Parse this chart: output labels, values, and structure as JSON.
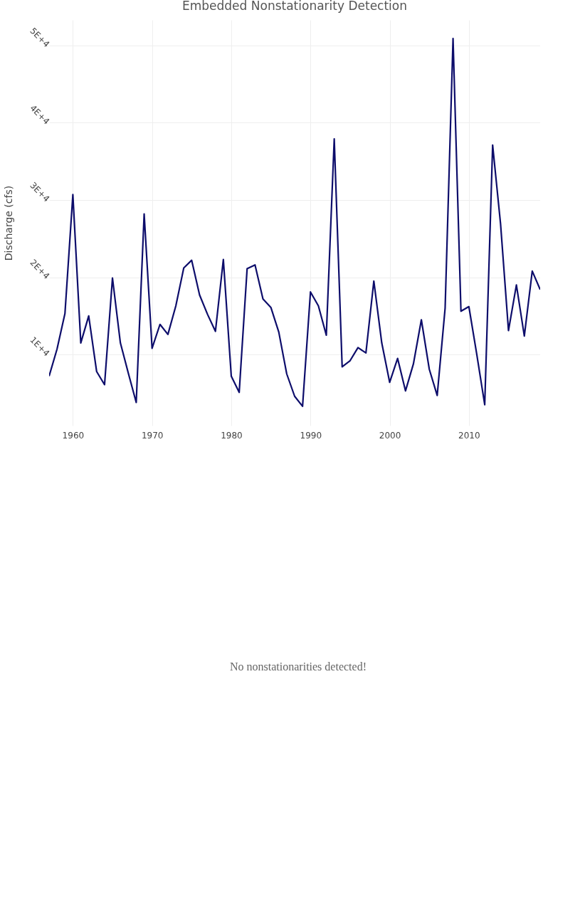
{
  "chart_data": {
    "type": "line",
    "title": "Embedded Nonstationarity Detection",
    "ylabel": "Discharge (cfs)",
    "x": [
      1957,
      1958,
      1959,
      1960,
      1961,
      1962,
      1963,
      1964,
      1965,
      1966,
      1967,
      1968,
      1969,
      1970,
      1971,
      1972,
      1973,
      1974,
      1975,
      1976,
      1977,
      1978,
      1979,
      1980,
      1981,
      1982,
      1983,
      1984,
      1985,
      1986,
      1987,
      1988,
      1989,
      1990,
      1991,
      1992,
      1993,
      1994,
      1995,
      1996,
      1997,
      1998,
      1999,
      2000,
      2001,
      2002,
      2003,
      2004,
      2005,
      2006,
      2007,
      2008,
      2009,
      2010,
      2011,
      2012,
      2013,
      2014,
      2015,
      2016,
      2017,
      2018,
      2019
    ],
    "series": [
      {
        "color": "#0d0d6b",
        "values": [
          7200,
          10700,
          15300,
          30700,
          11500,
          15000,
          7800,
          6100,
          19900,
          11500,
          7600,
          3800,
          28200,
          10800,
          13900,
          12600,
          16300,
          21200,
          22200,
          17700,
          15200,
          13000,
          22300,
          7200,
          5100,
          21100,
          21600,
          17200,
          16100,
          12900,
          7500,
          4600,
          3300,
          18100,
          16300,
          12500,
          37900,
          8400,
          9200,
          10900,
          10200,
          19500,
          11500,
          6400,
          9500,
          5300,
          8800,
          14500,
          8100,
          4700,
          16000,
          50900,
          15600,
          16200,
          10000,
          3500,
          37100,
          26900,
          13100,
          19000,
          12400,
          20800,
          18400
        ]
      }
    ],
    "xlim": [
      1957,
      2019
    ],
    "ylim": [
      800,
      53300
    ],
    "xticks": [
      1960,
      1970,
      1980,
      1990,
      2000,
      2010
    ],
    "yticks": [
      {
        "value": 10000,
        "label": "1E+4"
      },
      {
        "value": 20000,
        "label": "2E+4"
      },
      {
        "value": 30000,
        "label": "3E+4"
      },
      {
        "value": 40000,
        "label": "4E+4"
      },
      {
        "value": 50000,
        "label": "5E+4"
      }
    ],
    "grid": true,
    "legend": false,
    "marker": "none",
    "line_style": "solid",
    "annotations": [
      "No nonstationarities detected!"
    ]
  }
}
